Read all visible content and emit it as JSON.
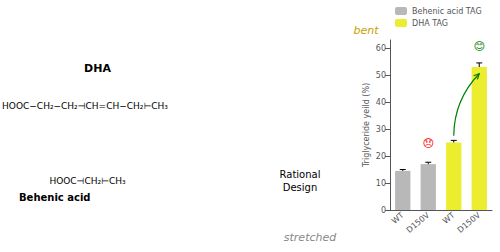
{
  "chart_data": {
    "type": "bar",
    "categories": [
      "WT",
      "D150V",
      "WT",
      "D150V"
    ],
    "series": [
      {
        "name": "Behenic acid TAG",
        "color": "#b8b8b8",
        "values": [
          14.5,
          17.0,
          null,
          null
        ],
        "errors": [
          0.5,
          0.7,
          null,
          null
        ]
      },
      {
        "name": "DHA TAG",
        "color": "#eded30",
        "values": [
          null,
          null,
          25.0,
          53.0
        ],
        "errors": [
          null,
          null,
          0.8,
          1.5
        ]
      }
    ],
    "ylabel": "Triglyceride yeild (%)",
    "ylim": [
      0,
      63
    ],
    "yticks": [
      0,
      10,
      20,
      30,
      40,
      50,
      60
    ],
    "grid": false,
    "legend": "upper left",
    "annotations": [
      {
        "text": "DHA"
      },
      {
        "text": "HOOC−CH₂−CH₂⊣CH=CH−CH₂⊢CH₃"
      },
      {
        "text": "HOOC⊣CH₂⊢CH₃"
      },
      {
        "text": "Behenic acid"
      },
      {
        "text": "Rational\nDesign"
      },
      {
        "text": "bent",
        "color": "#c8a000"
      },
      {
        "text": "stretched",
        "color": "#888888"
      },
      {
        "text": "😞",
        "color": "red",
        "index": 1,
        "y": 22.5
      },
      {
        "text": "😊",
        "color": "green",
        "index": 3,
        "y": 58.5
      }
    ],
    "arrows": [
      {
        "from": {
          "index": 2,
          "y": 27.5
        },
        "to": {
          "index": 3,
          "y": 50.5
        },
        "color": "green"
      }
    ]
  }
}
